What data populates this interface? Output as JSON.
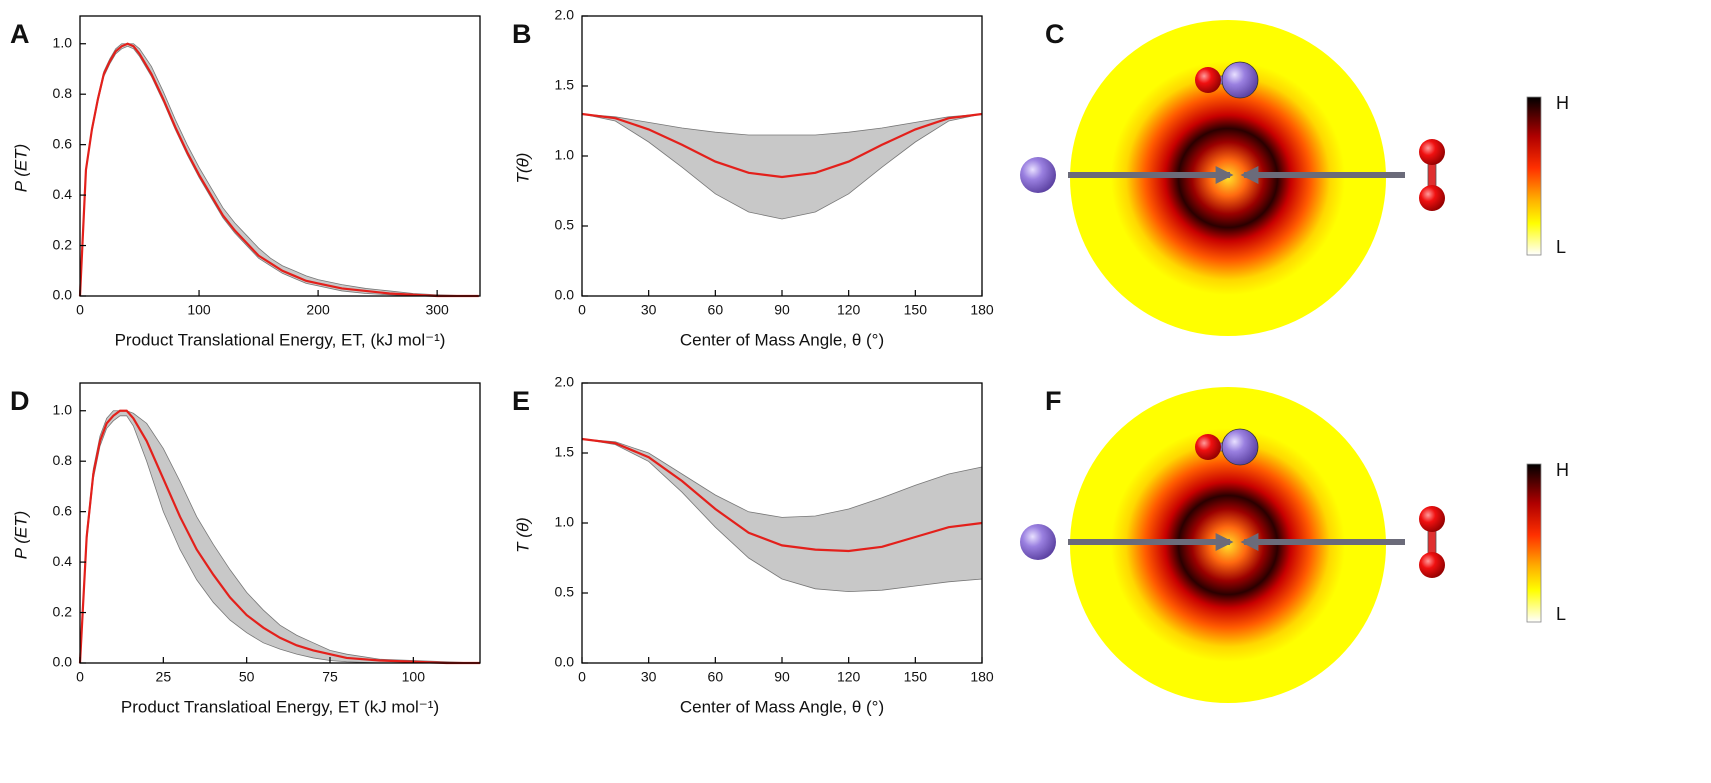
{
  "chart_data": [
    {
      "type": "line",
      "panel": "A",
      "xlabel": "Product Translational Energy, ET, (kJ mol⁻¹)",
      "ylabel": "P (ET)",
      "x": [
        0,
        5,
        10,
        15,
        20,
        25,
        30,
        35,
        40,
        45,
        50,
        60,
        70,
        80,
        90,
        100,
        110,
        120,
        130,
        140,
        150,
        160,
        170,
        180,
        190,
        200,
        220,
        240,
        260,
        280,
        300,
        320,
        335
      ],
      "values": [
        0,
        0.5,
        0.66,
        0.78,
        0.88,
        0.93,
        0.97,
        0.99,
        1.0,
        0.99,
        0.96,
        0.88,
        0.78,
        0.67,
        0.57,
        0.48,
        0.4,
        0.32,
        0.26,
        0.21,
        0.16,
        0.13,
        0.1,
        0.08,
        0.06,
        0.05,
        0.03,
        0.02,
        0.01,
        0.005,
        0,
        0,
        0
      ],
      "upper": [
        0,
        0.51,
        0.67,
        0.79,
        0.89,
        0.94,
        0.98,
        1.0,
        1.0,
        1.0,
        0.98,
        0.91,
        0.81,
        0.7,
        0.6,
        0.51,
        0.43,
        0.35,
        0.29,
        0.24,
        0.19,
        0.15,
        0.12,
        0.1,
        0.08,
        0.065,
        0.045,
        0.03,
        0.02,
        0.01,
        0.005,
        0.002,
        0
      ],
      "lower": [
        0,
        0.49,
        0.65,
        0.77,
        0.87,
        0.92,
        0.96,
        0.98,
        0.99,
        0.98,
        0.95,
        0.87,
        0.77,
        0.66,
        0.56,
        0.47,
        0.39,
        0.31,
        0.25,
        0.2,
        0.15,
        0.12,
        0.09,
        0.07,
        0.05,
        0.04,
        0.02,
        0.01,
        0.005,
        0,
        0,
        0,
        0
      ],
      "color": "#e3201b",
      "band_color": "#c8c8c8",
      "xlim": [
        0,
        336
      ],
      "xticks": [
        0,
        100,
        200,
        300
      ],
      "ylim": [
        0,
        1.11
      ],
      "yticks": [
        {
          "value": 0,
          "label": "0.0"
        },
        0.2,
        0.4,
        0.6,
        0.8,
        {
          "value": 1,
          "label": "1.0"
        }
      ]
    },
    {
      "type": "line",
      "panel": "B",
      "xlabel": "Center of Mass Angle, θ (°)",
      "ylabel": "T(θ)",
      "x": [
        0,
        15,
        30,
        45,
        60,
        75,
        90,
        105,
        120,
        135,
        150,
        165,
        180
      ],
      "values": [
        1.3,
        1.27,
        1.19,
        1.08,
        0.96,
        0.88,
        0.85,
        0.88,
        0.96,
        1.08,
        1.19,
        1.27,
        1.3
      ],
      "upper": [
        1.3,
        1.28,
        1.24,
        1.2,
        1.17,
        1.15,
        1.15,
        1.15,
        1.17,
        1.2,
        1.24,
        1.28,
        1.3
      ],
      "lower": [
        1.3,
        1.25,
        1.1,
        0.92,
        0.73,
        0.6,
        0.55,
        0.6,
        0.73,
        0.92,
        1.1,
        1.25,
        1.3
      ],
      "color": "#e3201b",
      "band_color": "#c8c8c8",
      "xlim": [
        0,
        180
      ],
      "xticks": [
        0,
        30,
        60,
        90,
        120,
        150,
        180
      ],
      "ylim": [
        0,
        2
      ],
      "yticks": [
        {
          "value": 0,
          "label": "0.0"
        },
        0.5,
        {
          "value": 1,
          "label": "1.0"
        },
        1.5,
        {
          "value": 2,
          "label": "2.0"
        }
      ]
    },
    {
      "type": "line",
      "panel": "D",
      "xlabel": "Product Translatioal Energy, ET (kJ mol⁻¹)",
      "ylabel": "P (ET)",
      "x": [
        0,
        2,
        4,
        6,
        8,
        10,
        12,
        14,
        16,
        20,
        25,
        30,
        35,
        40,
        45,
        50,
        55,
        60,
        65,
        70,
        75,
        80,
        90,
        100,
        110,
        120
      ],
      "values": [
        0,
        0.5,
        0.75,
        0.88,
        0.95,
        0.98,
        1.0,
        1.0,
        0.97,
        0.88,
        0.73,
        0.58,
        0.45,
        0.35,
        0.26,
        0.19,
        0.14,
        0.1,
        0.07,
        0.05,
        0.035,
        0.02,
        0.01,
        0.005,
        0,
        0
      ],
      "upper": [
        0,
        0.52,
        0.77,
        0.9,
        0.97,
        1.0,
        1.0,
        1.0,
        0.99,
        0.95,
        0.85,
        0.72,
        0.58,
        0.47,
        0.37,
        0.28,
        0.21,
        0.15,
        0.11,
        0.08,
        0.05,
        0.035,
        0.015,
        0.01,
        0.005,
        0
      ],
      "lower": [
        0,
        0.48,
        0.73,
        0.86,
        0.93,
        0.96,
        0.98,
        0.98,
        0.94,
        0.8,
        0.6,
        0.45,
        0.33,
        0.24,
        0.17,
        0.12,
        0.08,
        0.055,
        0.035,
        0.02,
        0.01,
        0.005,
        0,
        0,
        0,
        0
      ],
      "color": "#e3201b",
      "band_color": "#c8c8c8",
      "xlim": [
        0,
        120
      ],
      "xticks": [
        0,
        25,
        50,
        75,
        100
      ],
      "ylim": [
        0,
        1.11
      ],
      "yticks": [
        {
          "value": 0,
          "label": "0.0"
        },
        0.2,
        0.4,
        0.6,
        0.8,
        {
          "value": 1,
          "label": "1.0"
        }
      ]
    },
    {
      "type": "line",
      "panel": "E",
      "xlabel": "Center of Mass Angle, θ (°)",
      "ylabel": "T (θ)",
      "x": [
        0,
        15,
        30,
        45,
        60,
        75,
        90,
        105,
        120,
        135,
        150,
        165,
        180
      ],
      "values": [
        1.6,
        1.57,
        1.47,
        1.3,
        1.1,
        0.93,
        0.84,
        0.81,
        0.8,
        0.83,
        0.9,
        0.97,
        1.0
      ],
      "upper": [
        1.6,
        1.58,
        1.5,
        1.35,
        1.2,
        1.08,
        1.04,
        1.05,
        1.1,
        1.18,
        1.27,
        1.35,
        1.4
      ],
      "lower": [
        1.6,
        1.56,
        1.44,
        1.22,
        0.97,
        0.75,
        0.6,
        0.53,
        0.51,
        0.52,
        0.55,
        0.58,
        0.6
      ],
      "color": "#e3201b",
      "band_color": "#c8c8c8",
      "xlim": [
        0,
        180
      ],
      "xticks": [
        0,
        30,
        60,
        90,
        120,
        150,
        180
      ],
      "ylim": [
        0,
        2
      ],
      "yticks": [
        {
          "value": 0,
          "label": "0.0"
        },
        0.5,
        {
          "value": 1,
          "label": "1.0"
        },
        1.5,
        {
          "value": 2,
          "label": "2.0"
        }
      ]
    }
  ],
  "maps": [
    {
      "panel": "C",
      "colorbar": [
        "H",
        "L"
      ]
    },
    {
      "panel": "F",
      "colorbar": [
        "H",
        "L"
      ]
    }
  ]
}
